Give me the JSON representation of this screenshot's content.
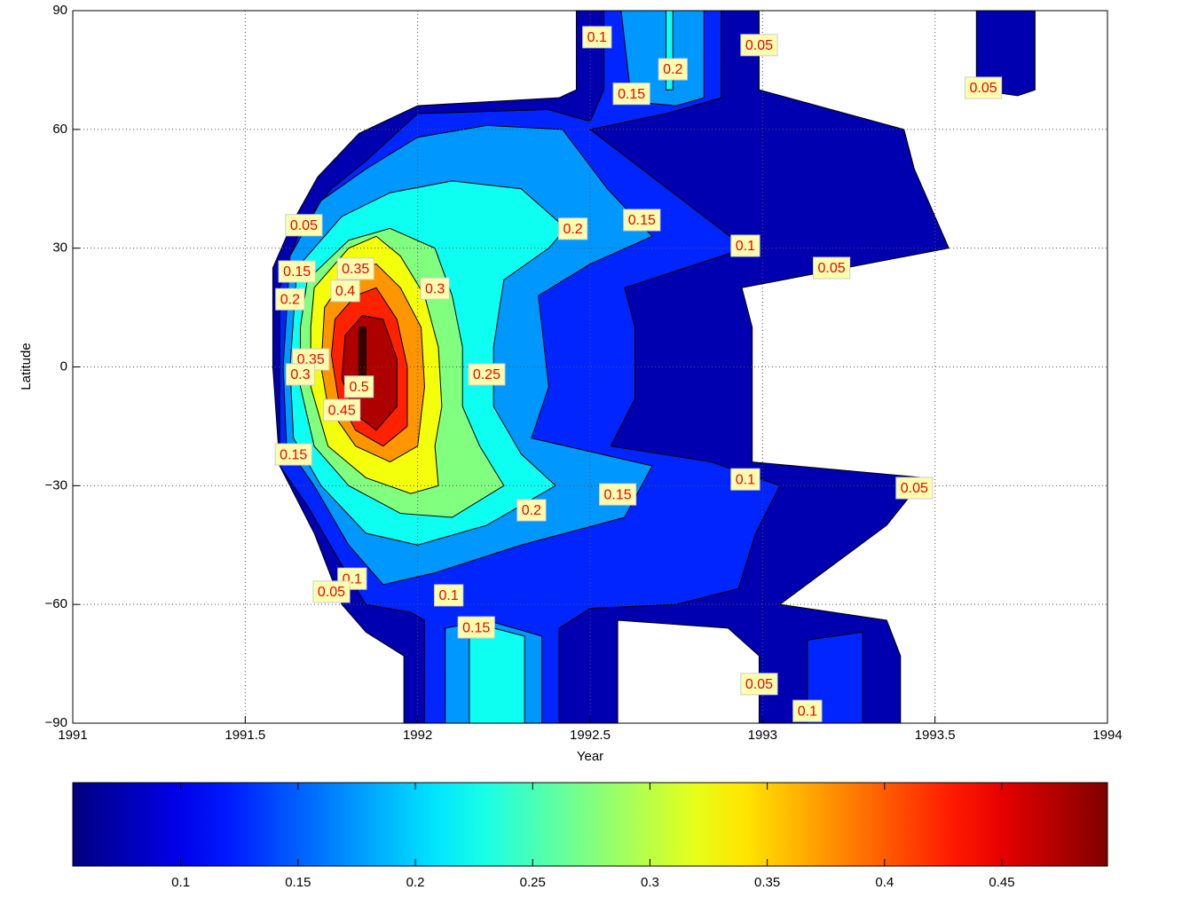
{
  "chart_data": {
    "type": "contourf",
    "xlabel": "Year",
    "ylabel": "Latitude",
    "xlim": [
      1991,
      1994
    ],
    "xticks": [
      1991,
      1991.5,
      1992,
      1992.5,
      1993,
      1993.5,
      1994
    ],
    "ylim": [
      -90,
      90
    ],
    "yticks": [
      {
        "value": -90,
        "label": "−90"
      },
      {
        "value": -60,
        "label": "−60"
      },
      {
        "value": -30,
        "label": "−30"
      },
      0,
      30,
      60,
      90
    ],
    "grid": true,
    "levels": [
      0.05,
      0.1,
      0.15,
      0.2,
      0.25,
      0.3,
      0.35,
      0.4,
      0.45,
      0.5
    ],
    "clim": [
      0.054,
      0.495
    ],
    "cticks": [
      0.1,
      0.15,
      0.2,
      0.25,
      0.3,
      0.35,
      0.4,
      0.45
    ],
    "contours": [
      {
        "level": 0.05,
        "x": [
          1991.58,
          1991.64,
          1991.71,
          1991.83,
          1992.0,
          1992.41,
          1992.46,
          1992.46,
          1992.99,
          1992.99,
          1993.41,
          1993.44,
          1993.54,
          1992.94,
          1992.97,
          1992.97,
          1993.47,
          1993.36,
          1993.05,
          1993.36,
          1993.4,
          1993.4,
          1992.99,
          1992.99,
          1992.9,
          1992.58,
          1992.58,
          1991.96,
          1991.96,
          1991.85,
          1991.78,
          1991.7,
          1991.6,
          1991.58
        ],
        "y": [
          25,
          37,
          48,
          59,
          66,
          68,
          70,
          90,
          90,
          70,
          60,
          50,
          30,
          20,
          10,
          -24,
          -28,
          -40,
          -60,
          -64,
          -73,
          -90,
          -90,
          -73,
          -66,
          -64,
          -90,
          -90,
          -73,
          -67,
          -60,
          -42,
          -25,
          0
        ]
      },
      {
        "level": 0.05,
        "x": [
          1993.62,
          1993.79,
          1993.79,
          1993.74,
          1993.62
        ],
        "y": [
          90,
          90,
          70,
          68.5,
          70
        ]
      },
      {
        "level": 0.1,
        "x": [
          1991.6,
          1991.66,
          1991.75,
          1991.85,
          1992.0,
          1992.38,
          1992.5,
          1992.54,
          1992.54,
          1992.88,
          1992.88,
          1992.72,
          1992.5,
          1992.77,
          1992.95,
          1992.6,
          1992.63,
          1992.63,
          1992.56,
          1992.85,
          1993.05,
          1992.98,
          1992.93,
          1992.75,
          1992.5,
          1992.41,
          1992.41,
          1992.02,
          1992.02,
          1991.98,
          1991.85,
          1991.78,
          1991.68,
          1991.6,
          1991.6
        ],
        "y": [
          20,
          35,
          45,
          52,
          64,
          65,
          62,
          70,
          90,
          90,
          68,
          64,
          60,
          42,
          30,
          20,
          10,
          -8,
          -20,
          -24,
          -30,
          -42,
          -56,
          -60,
          -61,
          -66,
          -90,
          -90,
          -64,
          -62,
          -60,
          -50,
          -35,
          -25,
          0
        ]
      },
      {
        "level": 0.1,
        "x": [
          1993.13,
          1993.29,
          1993.29,
          1993.13
        ],
        "y": [
          -90,
          -90,
          -67,
          -69
        ]
      },
      {
        "level": 0.15,
        "x": [
          1991.63,
          1991.72,
          1991.85,
          1992.0,
          1992.2,
          1992.42,
          1992.55,
          1992.68,
          1992.5,
          1992.35,
          1992.38,
          1992.33,
          1992.68,
          1992.6,
          1992.3,
          1992.05,
          1991.9,
          1991.8,
          1991.7,
          1991.62,
          1991.61
        ],
        "y": [
          28,
          42,
          50,
          58,
          61,
          60,
          45,
          33,
          26,
          18,
          -5,
          -18,
          -25,
          -38,
          -45,
          -52,
          -55,
          -45,
          -30,
          -20,
          0
        ]
      },
      {
        "level": 0.15,
        "x": [
          1992.08,
          1992.36,
          1992.36,
          1992.2,
          1992.08
        ],
        "y": [
          -90,
          -90,
          -68,
          -64,
          -66
        ]
      },
      {
        "level": 0.15,
        "x": [
          1992.59,
          1992.83,
          1992.83,
          1992.75,
          1992.62
        ],
        "y": [
          90,
          90,
          68,
          66,
          67
        ]
      },
      {
        "level": 0.2,
        "x": [
          1991.65,
          1991.78,
          1991.92,
          1992.1,
          1992.3,
          1992.43,
          1992.38,
          1992.25,
          1992.22,
          1992.22,
          1992.3,
          1992.4,
          1992.2,
          1992.0,
          1991.85,
          1991.72,
          1991.64,
          1991.63
        ],
        "y": [
          25,
          38,
          44,
          47,
          45,
          35,
          30,
          22,
          5,
          -10,
          -22,
          -30,
          -40,
          -45,
          -42,
          -30,
          -18,
          0
        ]
      },
      {
        "level": 0.2,
        "x": [
          1992.15,
          1992.31,
          1992.31,
          1992.22,
          1992.15
        ],
        "y": [
          -90,
          -90,
          -68,
          -66,
          -68
        ]
      },
      {
        "level": 0.2,
        "x": [
          1992.72,
          1992.74,
          1992.74,
          1992.72
        ],
        "y": [
          90,
          90,
          70,
          70
        ]
      },
      {
        "level": 0.25,
        "x": [
          1991.68,
          1991.8,
          1991.92,
          1992.05,
          1992.1,
          1992.13,
          1992.13,
          1992.18,
          1992.25,
          1992.1,
          1991.95,
          1991.8,
          1991.7,
          1991.66,
          1991.66
        ],
        "y": [
          22,
          32,
          35,
          30,
          18,
          5,
          -10,
          -20,
          -30,
          -38,
          -37,
          -30,
          -20,
          -5,
          10
        ]
      },
      {
        "level": 0.3,
        "x": [
          1991.7,
          1991.8,
          1991.88,
          1991.95,
          1992.02,
          1992.06,
          1992.07,
          1992.05,
          1992.06,
          1991.98,
          1991.85,
          1991.74,
          1991.69,
          1991.69
        ],
        "y": [
          20,
          30,
          33,
          28,
          18,
          5,
          -10,
          -20,
          -30,
          -32,
          -28,
          -20,
          -5,
          10
        ]
      },
      {
        "level": 0.35,
        "x": [
          1991.73,
          1991.8,
          1991.88,
          1991.95,
          1992.01,
          1992.02,
          1992.0,
          1991.92,
          1991.82,
          1991.74,
          1991.72
        ],
        "y": [
          15,
          24,
          26,
          20,
          10,
          -5,
          -20,
          -24,
          -20,
          -10,
          0
        ]
      },
      {
        "level": 0.4,
        "x": [
          1991.76,
          1991.82,
          1991.88,
          1991.94,
          1991.97,
          1991.97,
          1991.9,
          1991.82,
          1991.77,
          1991.75
        ],
        "y": [
          12,
          18,
          20,
          12,
          0,
          -15,
          -20,
          -16,
          -8,
          3
        ]
      },
      {
        "level": 0.45,
        "x": [
          1991.79,
          1991.84,
          1991.9,
          1991.94,
          1991.94,
          1991.88,
          1991.82,
          1991.78
        ],
        "y": [
          8,
          13,
          12,
          2,
          -10,
          -16,
          -12,
          -3
        ]
      },
      {
        "level": 0.5,
        "x": [
          1991.83,
          1991.85,
          1991.85,
          1991.83
        ],
        "y": [
          10,
          10,
          -2,
          -2
        ]
      }
    ],
    "contour_labels": [
      {
        "value": 0.1,
        "x": 1992.52,
        "y": 83.3
      },
      {
        "value": 0.2,
        "x": 1992.74,
        "y": 75.2
      },
      {
        "value": 0.15,
        "x": 1992.62,
        "y": 69
      },
      {
        "value": 0.05,
        "x": 1992.99,
        "y": 81.3
      },
      {
        "value": 0.05,
        "x": 1993.64,
        "y": 70.5
      },
      {
        "value": 0.05,
        "x": 1991.67,
        "y": 35.8
      },
      {
        "value": 0.15,
        "x": 1991.65,
        "y": 24.1
      },
      {
        "value": 0.2,
        "x": 1991.63,
        "y": 17.1
      },
      {
        "value": 0.35,
        "x": 1991.82,
        "y": 24.8
      },
      {
        "value": 0.4,
        "x": 1991.79,
        "y": 19.2
      },
      {
        "value": 0.3,
        "x": 1992.05,
        "y": 19.8
      },
      {
        "value": 0.2,
        "x": 1992.45,
        "y": 34.9
      },
      {
        "value": 0.15,
        "x": 1992.65,
        "y": 37.1
      },
      {
        "value": 0.1,
        "x": 1992.95,
        "y": 30.6
      },
      {
        "value": 0.05,
        "x": 1993.2,
        "y": 25
      },
      {
        "value": 0.35,
        "x": 1991.69,
        "y": 1.9
      },
      {
        "value": 0.3,
        "x": 1991.66,
        "y": -1.9
      },
      {
        "value": 0.5,
        "x": 1991.83,
        "y": -5
      },
      {
        "value": 0.45,
        "x": 1991.78,
        "y": -10.9
      },
      {
        "value": 0.25,
        "x": 1992.2,
        "y": -1.9
      },
      {
        "value": 0.15,
        "x": 1991.64,
        "y": -22.1
      },
      {
        "value": 0.1,
        "x": 1992.95,
        "y": -28.4
      },
      {
        "value": 0.05,
        "x": 1993.44,
        "y": -30.6
      },
      {
        "value": 0.2,
        "x": 1992.33,
        "y": -36.2
      },
      {
        "value": 0.15,
        "x": 1992.58,
        "y": -32.2
      },
      {
        "value": 0.1,
        "x": 1991.81,
        "y": -53.5
      },
      {
        "value": 0.05,
        "x": 1991.75,
        "y": -56.8
      },
      {
        "value": 0.1,
        "x": 1992.09,
        "y": -57.7
      },
      {
        "value": 0.15,
        "x": 1992.17,
        "y": -65.8
      },
      {
        "value": 0.05,
        "x": 1992.99,
        "y": -80.1
      },
      {
        "value": 0.1,
        "x": 1993.13,
        "y": -86.9
      }
    ]
  }
}
